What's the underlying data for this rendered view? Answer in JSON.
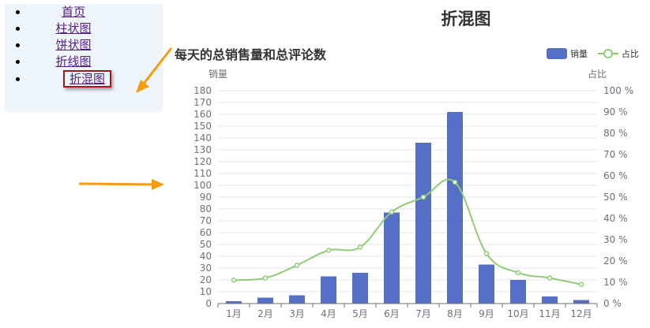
{
  "nav": {
    "items": [
      {
        "label": "首页",
        "state": "visited"
      },
      {
        "label": "柱状图",
        "state": "visited"
      },
      {
        "label": "饼状图",
        "state": "visited"
      },
      {
        "label": "折线图",
        "state": "visited"
      },
      {
        "label": "折混图",
        "state": "current"
      }
    ]
  },
  "page_title": "折混图",
  "colors": {
    "bar": "#5470c6",
    "line": "#91cc75",
    "axis_text": "#6e7079",
    "arrow": "#f39c12",
    "highlight_box": "#a01818"
  },
  "chart_data": {
    "type": "bar",
    "title": "每天的总销售量和总评论数",
    "categories": [
      "1月",
      "2月",
      "3月",
      "4月",
      "5月",
      "6月",
      "7月",
      "8月",
      "9月",
      "10月",
      "11月",
      "12月"
    ],
    "series": [
      {
        "name": "销量",
        "type": "bar",
        "axis": "left",
        "values": [
          2,
          5,
          7,
          23,
          26,
          77,
          136,
          162,
          33,
          20,
          6,
          3
        ]
      },
      {
        "name": "占比",
        "type": "line",
        "smooth": true,
        "axis": "right",
        "values": [
          11,
          12,
          18,
          25,
          26.5,
          43,
          50,
          57,
          23.5,
          14.5,
          12,
          9
        ]
      }
    ],
    "ylabel": "销量",
    "ylabel_right": "占比",
    "ylim": [
      0,
      180
    ],
    "y_ticks": [
      "0",
      "10",
      "20",
      "30",
      "40",
      "50",
      "60",
      "70",
      "80",
      "90",
      "100",
      "110",
      "120",
      "130",
      "140",
      "150",
      "160",
      "170",
      "180"
    ],
    "ylim_right": [
      0,
      100
    ],
    "y_right_ticks": [
      "0 %",
      "10 %",
      "20 %",
      "30 %",
      "40 %",
      "50 %",
      "60 %",
      "70 %",
      "80 %",
      "90 %",
      "100 %"
    ],
    "grid": true,
    "legend_position": "top-right"
  }
}
